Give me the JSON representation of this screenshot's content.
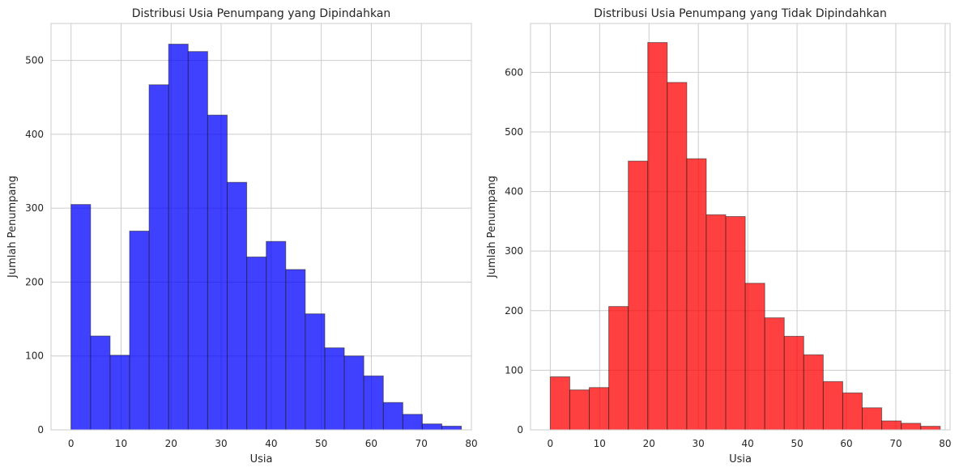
{
  "chart_data": [
    {
      "type": "bar",
      "title": "Distribusi Usia Penumpang yang Dipindahkan",
      "xlabel": "Usia",
      "ylabel": "Jumlah Penumpang",
      "bin_edges": [
        0,
        3.9,
        7.8,
        11.7,
        15.6,
        19.5,
        23.4,
        27.3,
        31.2,
        35.1,
        39.0,
        42.9,
        46.8,
        50.7,
        54.6,
        58.5,
        62.4,
        66.3,
        70.2,
        74.1,
        78.0
      ],
      "values": [
        305,
        127,
        101,
        269,
        467,
        522,
        512,
        426,
        335,
        234,
        255,
        217,
        157,
        111,
        100,
        73,
        37,
        21,
        8,
        5
      ],
      "xlim": [
        -4,
        80
      ],
      "ylim": [
        0,
        550
      ],
      "xticks": [
        0,
        10,
        20,
        30,
        40,
        50,
        60,
        70,
        80
      ],
      "yticks": [
        0,
        100,
        200,
        300,
        400,
        500
      ],
      "color": "#0000ff",
      "grid": true
    },
    {
      "type": "bar",
      "title": "Distribusi Usia Penumpang yang Tidak Dipindahkan",
      "xlabel": "Usia",
      "ylabel": "Jumlah Penumpang",
      "bin_edges": [
        0,
        3.95,
        7.9,
        11.85,
        15.8,
        19.75,
        23.7,
        27.65,
        31.6,
        35.55,
        39.5,
        43.45,
        47.4,
        51.35,
        55.3,
        59.25,
        63.2,
        67.15,
        71.1,
        75.05,
        79.0
      ],
      "values": [
        89,
        67,
        71,
        207,
        451,
        650,
        583,
        455,
        361,
        358,
        246,
        188,
        157,
        126,
        81,
        62,
        37,
        15,
        11,
        6
      ],
      "xlim": [
        -4,
        81
      ],
      "ylim": [
        0,
        682
      ],
      "xticks": [
        0,
        10,
        20,
        30,
        40,
        50,
        60,
        70,
        80
      ],
      "yticks": [
        0,
        100,
        200,
        300,
        400,
        500,
        600
      ],
      "color": "#ff0000",
      "grid": true
    }
  ]
}
